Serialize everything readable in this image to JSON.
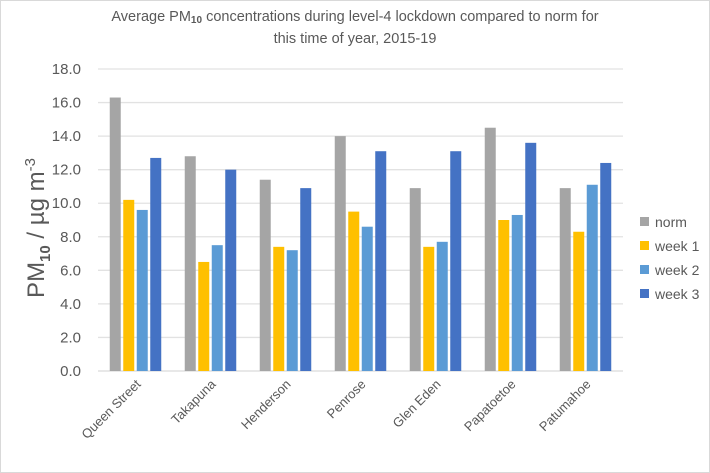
{
  "chart_data": {
    "type": "bar",
    "title_parts": {
      "pre": "Average PM",
      "sub": "10",
      "post": " concentrations during level-4 lockdown compared to norm for",
      "line2": "this time of year, 2015-19"
    },
    "title": "Average PM10 concentrations during level-4 lockdown compared to norm for this time of year, 2015-19",
    "xlabel": "",
    "ylabel": "PM10 / µg m-3",
    "ylabel_parts": {
      "pre": "PM",
      "sub": "10",
      "mid": " / µg m",
      "sup": "-3"
    },
    "ylim": [
      0,
      18
    ],
    "yticks": [
      "0.0",
      "2.0",
      "4.0",
      "6.0",
      "8.0",
      "10.0",
      "12.0",
      "14.0",
      "16.0",
      "18.0"
    ],
    "ytick_values": [
      0,
      2,
      4,
      6,
      8,
      10,
      12,
      14,
      16,
      18
    ],
    "grid": true,
    "legend_position": "right",
    "categories": [
      "Queen Street",
      "Takapuna",
      "Henderson",
      "Penrose",
      "Glen Eden",
      "Papatoetoe",
      "Patumahoe"
    ],
    "series": [
      {
        "name": "norm",
        "color": "#a5a5a5",
        "values": [
          16.3,
          12.8,
          11.4,
          14.0,
          10.9,
          14.5,
          10.9
        ]
      },
      {
        "name": "week 1",
        "color": "#ffc000",
        "values": [
          10.2,
          6.5,
          7.4,
          9.5,
          7.4,
          9.0,
          8.3
        ]
      },
      {
        "name": "week 2",
        "color": "#5b9bd5",
        "values": [
          9.6,
          7.5,
          7.2,
          8.6,
          7.7,
          9.3,
          11.1
        ]
      },
      {
        "name": "week 3",
        "color": "#4472c4",
        "values": [
          12.7,
          12.0,
          10.9,
          13.1,
          13.1,
          13.6,
          12.4
        ]
      }
    ]
  }
}
